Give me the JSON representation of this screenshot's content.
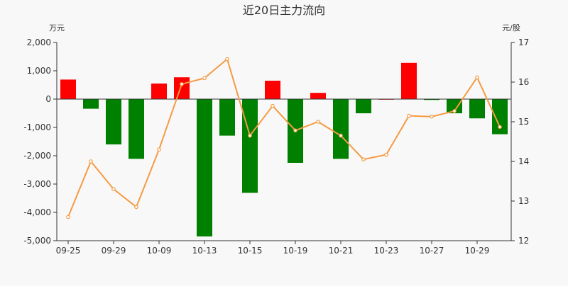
{
  "chart_data": {
    "type": "bar+line",
    "title": "近20日主力流向",
    "left_unit": "万元",
    "right_unit": "元/股",
    "x_tick_labels": [
      "09-25",
      "09-29",
      "10-09",
      "10-13",
      "10-15",
      "10-19",
      "10-21",
      "10-23",
      "10-27",
      "10-29"
    ],
    "y_left": {
      "min": -5000,
      "max": 2000,
      "ticks": [
        -5000,
        -4000,
        -3000,
        -2000,
        -1000,
        0,
        1000,
        2000
      ],
      "tick_labels": [
        "-5,000",
        "-4,000",
        "-3,000",
        "-2,000",
        "-1,000",
        "0",
        "1,000",
        "2,000"
      ]
    },
    "y_right": {
      "min": 12,
      "max": 17,
      "ticks": [
        12,
        13,
        14,
        15,
        16,
        17
      ],
      "tick_labels": [
        "12",
        "13",
        "14",
        "15",
        "16",
        "17"
      ]
    },
    "series": [
      {
        "kind": "bar",
        "axis": "left",
        "values": [
          690,
          -340,
          -1600,
          -2110,
          550,
          770,
          -4850,
          -1290,
          -3310,
          650,
          -2250,
          220,
          -2110,
          -500,
          0,
          1280,
          -30,
          -500,
          -680,
          -1240
        ]
      },
      {
        "kind": "line",
        "axis": "right",
        "values": [
          12.6,
          14.0,
          13.3,
          12.85,
          14.3,
          15.95,
          16.1,
          16.58,
          14.65,
          15.4,
          14.78,
          15.0,
          14.65,
          14.05,
          14.17,
          15.15,
          15.13,
          15.27,
          16.12,
          14.87
        ]
      }
    ],
    "colors": {
      "positive": "#ff0000",
      "negative": "#008000",
      "line": "#f59a42",
      "axis": "#333333",
      "text": "#333333"
    }
  }
}
